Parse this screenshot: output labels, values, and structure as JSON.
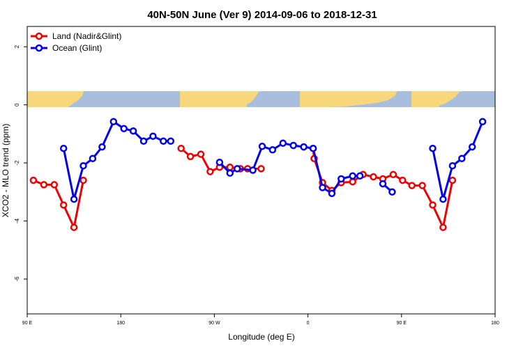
{
  "chart_data": {
    "type": "line",
    "title": "40N-50N June (Ver 9)   2014-09-06 to 2018-12-31",
    "xlabel": "Longitude (deg E)",
    "ylabel": "XCO2 - MLO trend (ppm)",
    "xlim": [
      90,
      540
    ],
    "ylim": [
      -7.2,
      2.7
    ],
    "x_ticks": [
      {
        "value": 90,
        "label": "90 E"
      },
      {
        "value": 180,
        "label": "180"
      },
      {
        "value": 270,
        "label": "90 W"
      },
      {
        "value": 360,
        "label": "0"
      },
      {
        "value": 450,
        "label": "90 E"
      },
      {
        "value": 540,
        "label": "180"
      }
    ],
    "y_ticks": [
      {
        "value": 2,
        "label": "2"
      },
      {
        "value": 0,
        "label": "0"
      },
      {
        "value": -2,
        "label": "-2"
      },
      {
        "value": -4,
        "label": "-4"
      },
      {
        "value": -6,
        "label": "-6"
      }
    ],
    "legend_position": "top-left",
    "grid": false,
    "series": [
      {
        "name": "Land (Nadir&Glint)",
        "color": "#ee0000",
        "segments": [
          [
            [
              96,
              -2.6
            ],
            [
              106,
              -2.75
            ],
            [
              116,
              -2.75
            ],
            [
              125,
              -3.45
            ],
            [
              135,
              -4.22
            ],
            [
              144,
              -2.6
            ]
          ],
          [
            [
              238,
              -1.5
            ],
            [
              247,
              -1.78
            ],
            [
              257,
              -1.7
            ],
            [
              266,
              -2.3
            ],
            [
              275,
              -2.15
            ],
            [
              285,
              -2.15
            ],
            [
              295,
              -2.2
            ],
            [
              302,
              -2.2
            ],
            [
              315,
              -2.2
            ]
          ],
          [
            [
              356,
              -1.45
            ],
            [
              365,
              -1.5
            ],
            [
              366,
              -1.85
            ],
            [
              374,
              -2.68
            ],
            [
              383,
              -2.95
            ],
            [
              392,
              -2.68
            ],
            [
              403,
              -2.65
            ],
            [
              413,
              -2.4
            ],
            [
              423,
              -2.48
            ],
            [
              432,
              -2.55
            ],
            [
              442,
              -2.4
            ],
            [
              451,
              -2.6
            ],
            [
              460,
              -2.78
            ],
            [
              470,
              -2.78
            ],
            [
              480,
              -3.45
            ],
            [
              490,
              -4.22
            ],
            [
              499,
              -2.6
            ]
          ]
        ]
      },
      {
        "name": "Ocean (Glint)",
        "color": "#0000ee",
        "segments": [
          [
            [
              125,
              -1.5
            ],
            [
              135,
              -3.25
            ],
            [
              144,
              -2.1
            ],
            [
              153,
              -1.85
            ],
            [
              162,
              -1.45
            ],
            [
              173,
              -0.58
            ],
            [
              183,
              -0.82
            ],
            [
              192,
              -0.9
            ],
            [
              202,
              -1.25
            ],
            [
              211,
              -1.08
            ],
            [
              221,
              -1.25
            ],
            [
              228,
              -1.25
            ]
          ],
          [
            [
              275,
              -1.98
            ],
            [
              285,
              -2.35
            ],
            [
              292,
              -2.2
            ],
            [
              307,
              -2.25
            ],
            [
              316,
              -1.43
            ],
            [
              326,
              -1.55
            ],
            [
              336,
              -1.32
            ],
            [
              346,
              -1.4
            ],
            [
              356,
              -1.45
            ],
            [
              365,
              -1.5
            ],
            [
              374,
              -2.85
            ],
            [
              383,
              -3.05
            ],
            [
              392,
              -2.55
            ],
            [
              403,
              -2.45
            ],
            [
              410,
              -2.45
            ]
          ],
          [
            [
              432,
              -2.72
            ],
            [
              441,
              -3.0
            ]
          ],
          [
            [
              480,
              -1.5
            ],
            [
              490,
              -3.25
            ],
            [
              499,
              -2.1
            ],
            [
              508,
              -1.85
            ],
            [
              518,
              -1.45
            ],
            [
              528,
              -0.58
            ]
          ]
        ]
      }
    ]
  }
}
